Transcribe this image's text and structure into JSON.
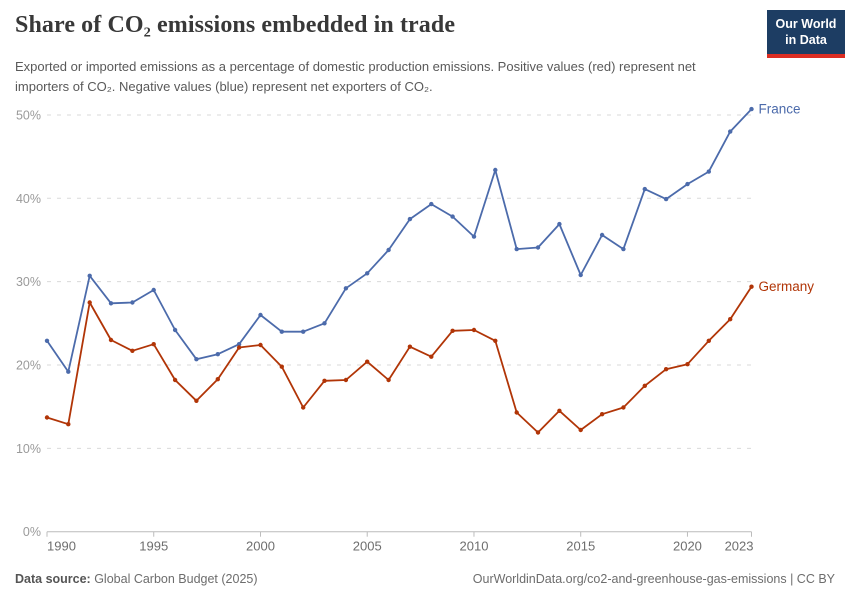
{
  "header": {
    "title": "Share of CO₂ emissions embedded in trade",
    "subtitle": "Exported or imported emissions as a percentage of domestic production emissions. Positive values (red) represent net importers of CO₂. Negative values (blue) represent net exporters of CO₂.",
    "logo": {
      "line1": "Our World",
      "line2": "in Data",
      "bg_color": "#1d3d63",
      "accent_color": "#dc2d22"
    }
  },
  "chart_data": {
    "type": "line",
    "title": "Share of CO₂ emissions embedded in trade",
    "x": [
      1990,
      1991,
      1992,
      1993,
      1994,
      1995,
      1996,
      1997,
      1998,
      1999,
      2000,
      2001,
      2002,
      2003,
      2004,
      2005,
      2006,
      2007,
      2008,
      2009,
      2010,
      2011,
      2012,
      2013,
      2014,
      2015,
      2016,
      2017,
      2018,
      2019,
      2020,
      2021,
      2022,
      2023
    ],
    "series": [
      {
        "name": "France",
        "color": "#4c6bab",
        "values": [
          22.9,
          19.2,
          30.7,
          27.4,
          27.5,
          29.0,
          24.2,
          20.7,
          21.3,
          22.5,
          26.0,
          24.0,
          24.0,
          25.0,
          29.2,
          31.0,
          33.8,
          37.5,
          39.3,
          37.8,
          35.4,
          43.4,
          33.9,
          34.1,
          36.9,
          30.8,
          35.6,
          33.9,
          41.1,
          39.9,
          41.7,
          43.2,
          48.0,
          50.7
        ]
      },
      {
        "name": "Germany",
        "color": "#b13507",
        "values": [
          13.7,
          12.9,
          27.5,
          23.0,
          21.7,
          22.5,
          18.2,
          15.7,
          18.3,
          22.1,
          22.4,
          19.8,
          14.9,
          18.1,
          18.2,
          20.4,
          18.2,
          22.2,
          21.0,
          24.1,
          24.2,
          22.9,
          14.3,
          11.9,
          14.5,
          12.2,
          14.1,
          14.9,
          17.5,
          19.5,
          20.1,
          22.9,
          25.5,
          29.4
        ]
      }
    ],
    "xlabel": "",
    "ylabel": "",
    "ylim": [
      0,
      52
    ],
    "yticks": [
      0,
      10,
      20,
      30,
      40,
      50
    ],
    "ytick_suffix": "%",
    "xticks": [
      1990,
      1995,
      2000,
      2005,
      2010,
      2015,
      2020,
      2023
    ],
    "grid": "horizontal-dashed",
    "legend": "end-of-line-labels",
    "grid_color": "#dadada",
    "axis_color": "#bcbcbc",
    "ytick_label_color": "#9a9a9a",
    "xtick_label_color": "#6e6e6e"
  },
  "footer": {
    "source_label": "Data source:",
    "source_value": " Global Carbon Budget (2025)",
    "link": "OurWorldinData.org/co2-and-greenhouse-gas-emissions",
    "license_suffix": " | CC BY"
  }
}
